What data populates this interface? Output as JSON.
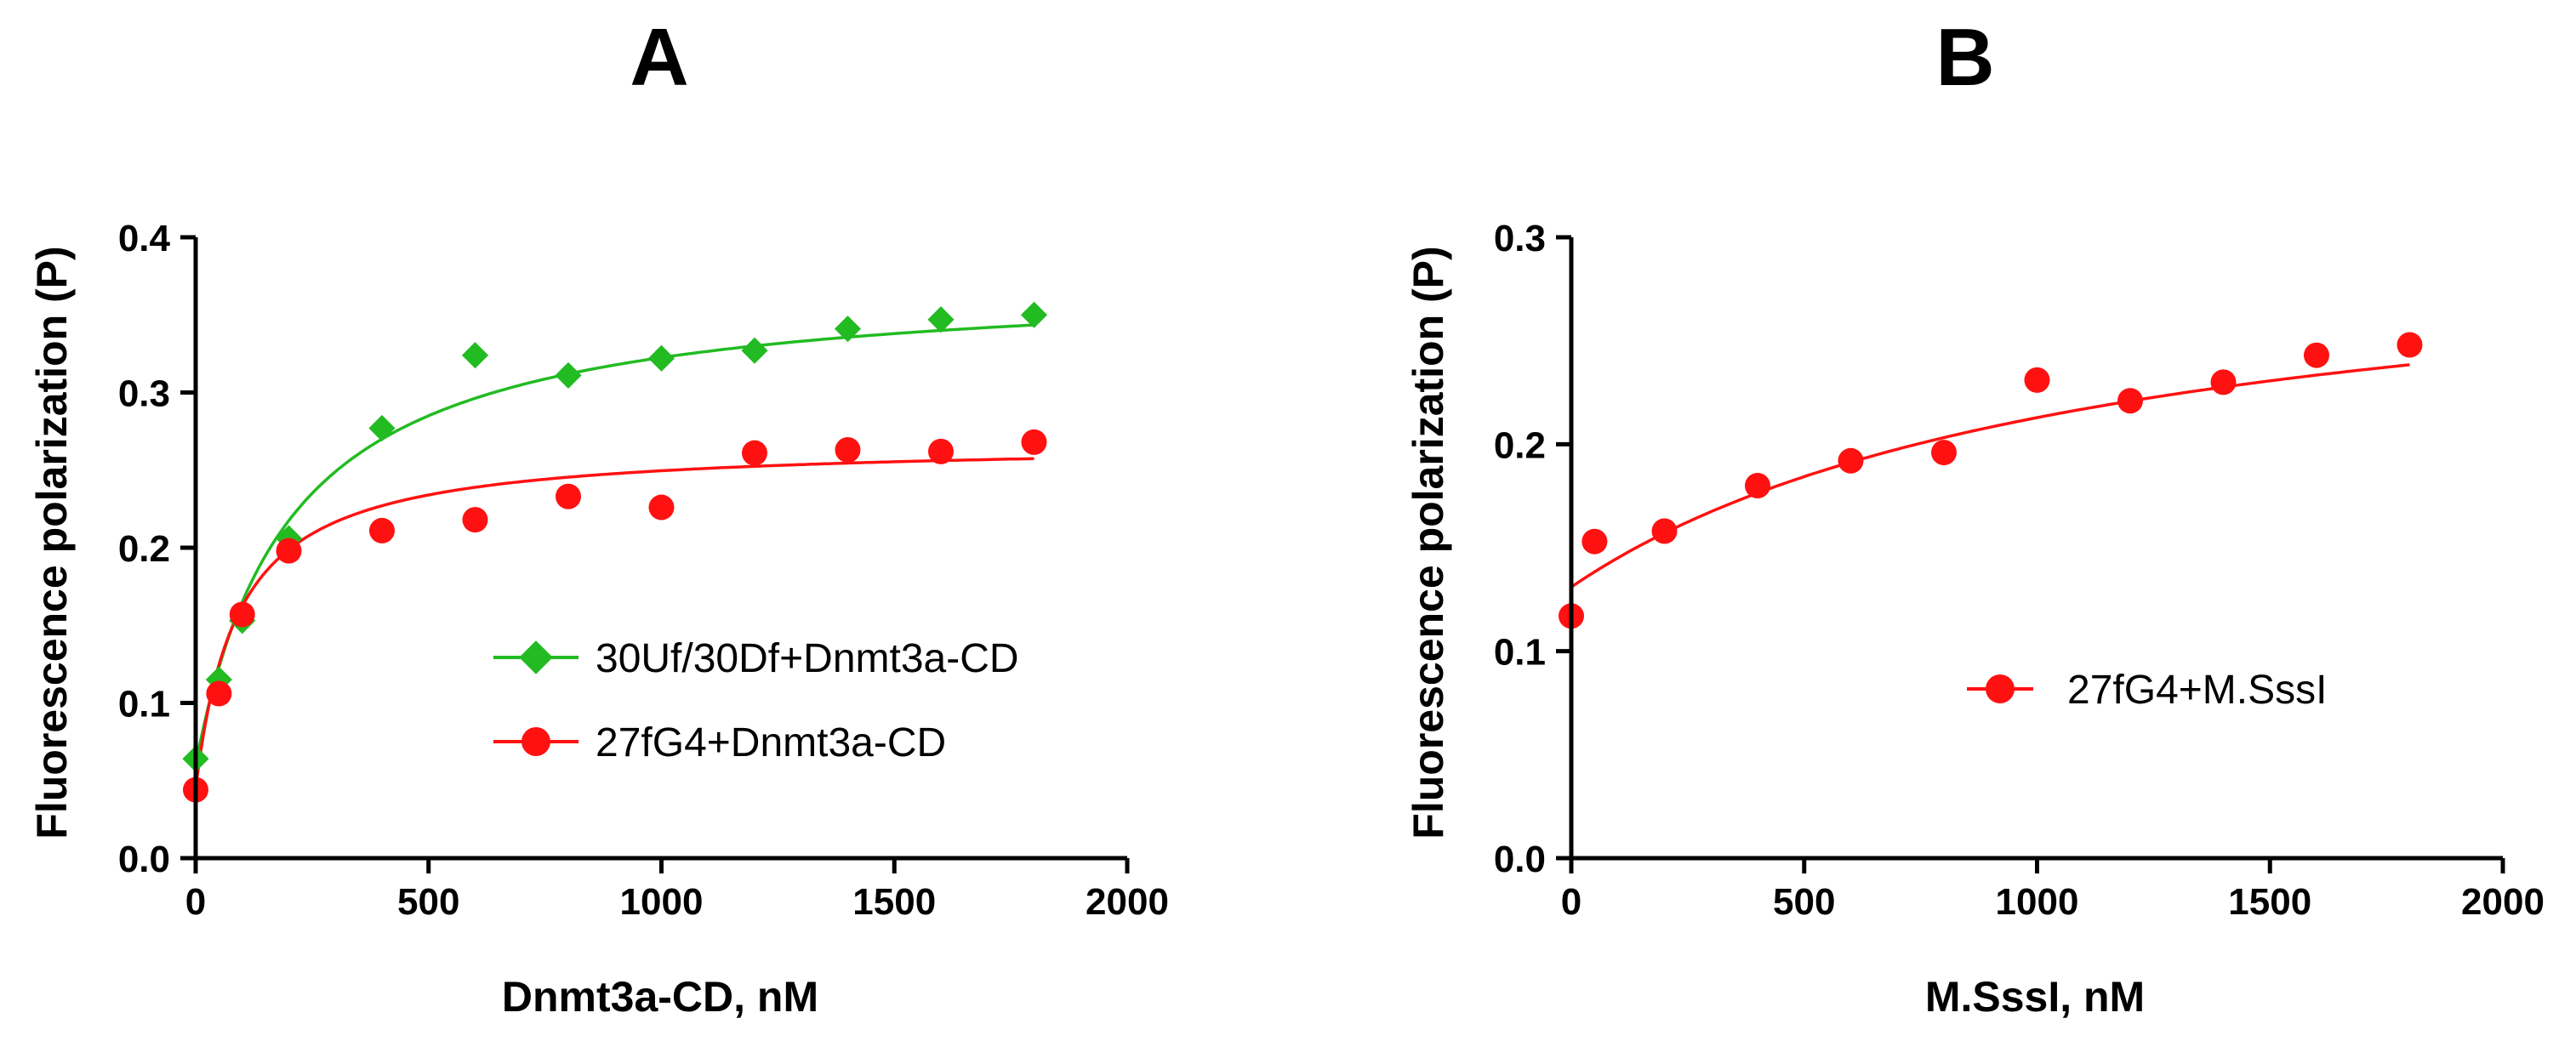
{
  "chart_data": [
    {
      "type": "scatter",
      "panel": "A",
      "xlabel": "Dnmt3a-CD, nM",
      "ylabel": "Fluorescence polarization  (P)",
      "xlim": [
        0,
        2000
      ],
      "ylim": [
        0,
        0.4
      ],
      "x_ticks": [
        "0",
        "500",
        "1000",
        "1500",
        "2000"
      ],
      "y_ticks": [
        "0.0",
        "0.1",
        "0.2",
        "0.3",
        "0.4"
      ],
      "legend_position": "center-right",
      "grid": false,
      "series": [
        {
          "name": "30Uf/30Df+Dnmt3a-CD",
          "marker": "diamond",
          "color": "#22bb22",
          "x": [
            0,
            50,
            100,
            200,
            400,
            600,
            800,
            1000,
            1200,
            1400,
            1600,
            1800
          ],
          "y": [
            0.064,
            0.115,
            0.153,
            0.206,
            0.277,
            0.324,
            0.311,
            0.322,
            0.327,
            0.341,
            0.347,
            0.35
          ],
          "fit": {
            "model": "hyperbolic",
            "p0": 0.06,
            "pmax": 0.375,
            "kd": 200
          }
        },
        {
          "name": "27fG4+Dnmt3a-CD",
          "marker": "circle",
          "color": "#ff1111",
          "x": [
            0,
            50,
            100,
            200,
            400,
            600,
            800,
            1000,
            1200,
            1400,
            1600,
            1800
          ],
          "y": [
            0.044,
            0.106,
            0.157,
            0.198,
            0.211,
            0.218,
            0.233,
            0.226,
            0.261,
            0.263,
            0.262,
            0.268
          ],
          "fit": {
            "model": "hyperbolic",
            "p0": 0.045,
            "pmax": 0.268,
            "kd": 90
          }
        }
      ]
    },
    {
      "type": "scatter",
      "panel": "B",
      "xlabel": "M.SssI, nM",
      "ylabel": "Fluorescence polarization  (P)",
      "xlim": [
        0,
        2000
      ],
      "ylim": [
        0,
        0.3
      ],
      "x_ticks": [
        "0",
        "500",
        "1000",
        "1500",
        "2000"
      ],
      "y_ticks": [
        "0.0",
        "0.1",
        "0.2",
        "0.3"
      ],
      "legend_position": "center-right",
      "grid": false,
      "series": [
        {
          "name": "27fG4+M.SssI",
          "marker": "circle",
          "color": "#ff1111",
          "x": [
            0,
            50,
            200,
            400,
            600,
            800,
            1000,
            1200,
            1400,
            1600,
            1800
          ],
          "y": [
            0.117,
            0.153,
            0.158,
            0.18,
            0.192,
            0.196,
            0.231,
            0.221,
            0.23,
            0.243,
            0.248
          ],
          "fit": {
            "model": "hyperbolic",
            "p0": 0.131,
            "pmax": 0.307,
            "kd": 1150
          }
        }
      ]
    }
  ]
}
